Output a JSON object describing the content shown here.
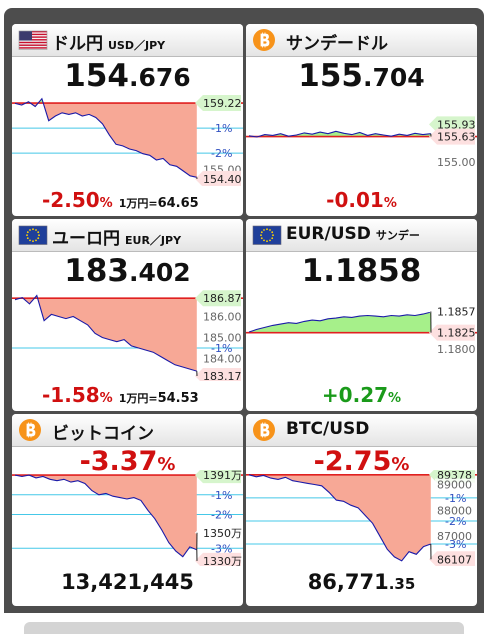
{
  "panels": [
    {
      "title": "ドル円",
      "subtitle": "USD／JPY",
      "icon": "us",
      "price": "154",
      "price_decimal": ".676",
      "change": "-2.50",
      "change_unit": "%",
      "change_color": "#d01010",
      "note_label": "1万円=",
      "note_value": "64.65",
      "chart": {
        "ylim": [
          153.95,
          160.05
        ],
        "base": 159.22,
        "values": [
          159.2,
          159.1,
          159.3,
          159.0,
          159.5,
          158.1,
          158.4,
          158.6,
          158.5,
          158.6,
          158.4,
          158.5,
          158.3,
          157.9,
          157.2,
          156.6,
          156.5,
          156.3,
          156.2,
          156.0,
          155.9,
          155.6,
          155.7,
          155.3,
          155.2,
          154.9,
          154.6,
          154.5
        ],
        "labels": [
          {
            "value": 159.22,
            "label": "159.22",
            "style": "high"
          },
          {
            "value": 157.63,
            "label": "-1%",
            "style": "pct"
          },
          {
            "value": 156.04,
            "label": "-2%",
            "style": "pct"
          },
          {
            "value": 155.0,
            "label": "155.00",
            "style": "plain"
          },
          {
            "value": 154.4,
            "label": "154.40",
            "style": "low"
          }
        ]
      }
    },
    {
      "title": "サンデードル",
      "icon": "btc",
      "price": "155",
      "price_decimal": ".704",
      "change": "-0.01",
      "change_unit": "%",
      "change_color": "#d01010",
      "chart": {
        "ylim": [
          154.41,
          156.78
        ],
        "base": 155.63,
        "values": [
          155.65,
          155.62,
          155.68,
          155.66,
          155.7,
          155.64,
          155.67,
          155.72,
          155.69,
          155.74,
          155.7,
          155.76,
          155.71,
          155.68,
          155.73,
          155.66,
          155.7,
          155.67,
          155.64,
          155.69,
          155.66,
          155.71,
          155.68,
          155.7
        ],
        "labels": [
          {
            "value": 155.93,
            "label": "155.93",
            "style": "high"
          },
          {
            "value": 155.63,
            "label": "155.63",
            "style": "low"
          },
          {
            "value": 155.0,
            "label": "155.00",
            "style": "plain"
          }
        ]
      }
    },
    {
      "title": "ユーロ円",
      "subtitle": "EUR／JPY",
      "icon": "eu",
      "price": "183",
      "price_decimal": ".402",
      "change": "-1.58",
      "change_unit": "%",
      "change_color": "#d01010",
      "note_label": "1万円=",
      "note_value": "54.53",
      "chart": {
        "ylim": [
          182.93,
          187.5
        ],
        "base": 186.87,
        "values": [
          186.8,
          186.9,
          186.6,
          187.0,
          185.8,
          186.1,
          186.0,
          185.9,
          186.0,
          185.8,
          185.6,
          185.2,
          185.0,
          184.9,
          184.8,
          184.9,
          184.6,
          184.5,
          184.4,
          184.3,
          184.1,
          183.9,
          183.7,
          183.6,
          183.5,
          183.4
        ],
        "labels": [
          {
            "value": 186.87,
            "label": "186.87",
            "style": "high"
          },
          {
            "value": 186.0,
            "label": "186.00",
            "style": "plain"
          },
          {
            "value": 185.0,
            "label": "185.00",
            "style": "plain"
          },
          {
            "value": 184.5,
            "label": "-1%",
            "style": "pct"
          },
          {
            "value": 184.0,
            "label": "184.00",
            "style": "plain"
          },
          {
            "value": 183.17,
            "label": "183.17",
            "style": "low"
          }
        ]
      }
    },
    {
      "title": "EUR/USD",
      "subtitle": "サンデー",
      "icon": "eu",
      "price": "1.1858",
      "change": "+0.27",
      "change_unit": "%",
      "change_color": "#1a9a1a",
      "chart": {
        "ylim": [
          1.1752,
          1.1897
        ],
        "base": 1.1825,
        "values": [
          1.1826,
          1.183,
          1.1833,
          1.1836,
          1.1838,
          1.184,
          1.1839,
          1.1842,
          1.1844,
          1.1843,
          1.1846,
          1.1847,
          1.1849,
          1.1848,
          1.185,
          1.1851,
          1.185,
          1.1849,
          1.1851,
          1.185,
          1.1852,
          1.1851,
          1.1853,
          1.1856
        ],
        "labels": [
          {
            "value": 1.1857,
            "label": "1.1857",
            "style": "plainline"
          },
          {
            "value": 1.1825,
            "label": "1.1825",
            "style": "low"
          },
          {
            "value": 1.18,
            "label": "1.1800",
            "style": "plain"
          }
        ]
      }
    },
    {
      "title": "ビットコイン",
      "icon": "btc",
      "price": "13,421,445",
      "change": "-3.37",
      "change_unit": "%",
      "change_color": "#d01010",
      "chart": {
        "ylim": [
          1326.4,
          1394.6
        ],
        "base": 1391,
        "values": [
          1391,
          1390,
          1391,
          1389,
          1390,
          1388,
          1387,
          1388,
          1386,
          1387,
          1385,
          1380,
          1377,
          1378,
          1376,
          1375,
          1374,
          1375,
          1373,
          1366,
          1360,
          1352,
          1343,
          1337,
          1333,
          1340,
          1338
        ],
        "labels": [
          {
            "value": 1391,
            "label": "1391万",
            "style": "high"
          },
          {
            "value": 1377,
            "label": "-1%",
            "style": "pct"
          },
          {
            "value": 1363,
            "label": "-2%",
            "style": "pct"
          },
          {
            "value": 1350,
            "label": "1350万",
            "style": "plainline"
          },
          {
            "value": 1339,
            "label": "-3%",
            "style": "pct"
          },
          {
            "value": 1330,
            "label": "1330万",
            "style": "low"
          }
        ]
      }
    },
    {
      "title": "BTC/USD",
      "icon": "btc",
      "price": "86,771",
      "price_decimal": ".35",
      "change": "-2.75",
      "change_unit": "%",
      "change_color": "#d01010",
      "chart": {
        "ylim": [
          85848,
          89563
        ],
        "base": 89378,
        "values": [
          89378,
          89300,
          89350,
          89250,
          89200,
          89280,
          89150,
          89100,
          89050,
          89000,
          88950,
          88700,
          88400,
          88350,
          88200,
          88100,
          87800,
          87500,
          87000,
          86500,
          86200,
          86050,
          86400,
          86300,
          86600,
          86700
        ],
        "labels": [
          {
            "value": 89378,
            "label": "89378",
            "style": "high"
          },
          {
            "value": 89000,
            "label": "89000",
            "style": "plain"
          },
          {
            "value": 88484,
            "label": "-1%",
            "style": "pct"
          },
          {
            "value": 88000,
            "label": "88000",
            "style": "plain"
          },
          {
            "value": 87591,
            "label": "-2%",
            "style": "pct"
          },
          {
            "value": 87000,
            "label": "87000",
            "style": "plain"
          },
          {
            "value": 86697,
            "label": "-3%",
            "style": "pct"
          },
          {
            "value": 86107,
            "label": "86107",
            "style": "low"
          }
        ]
      }
    }
  ]
}
